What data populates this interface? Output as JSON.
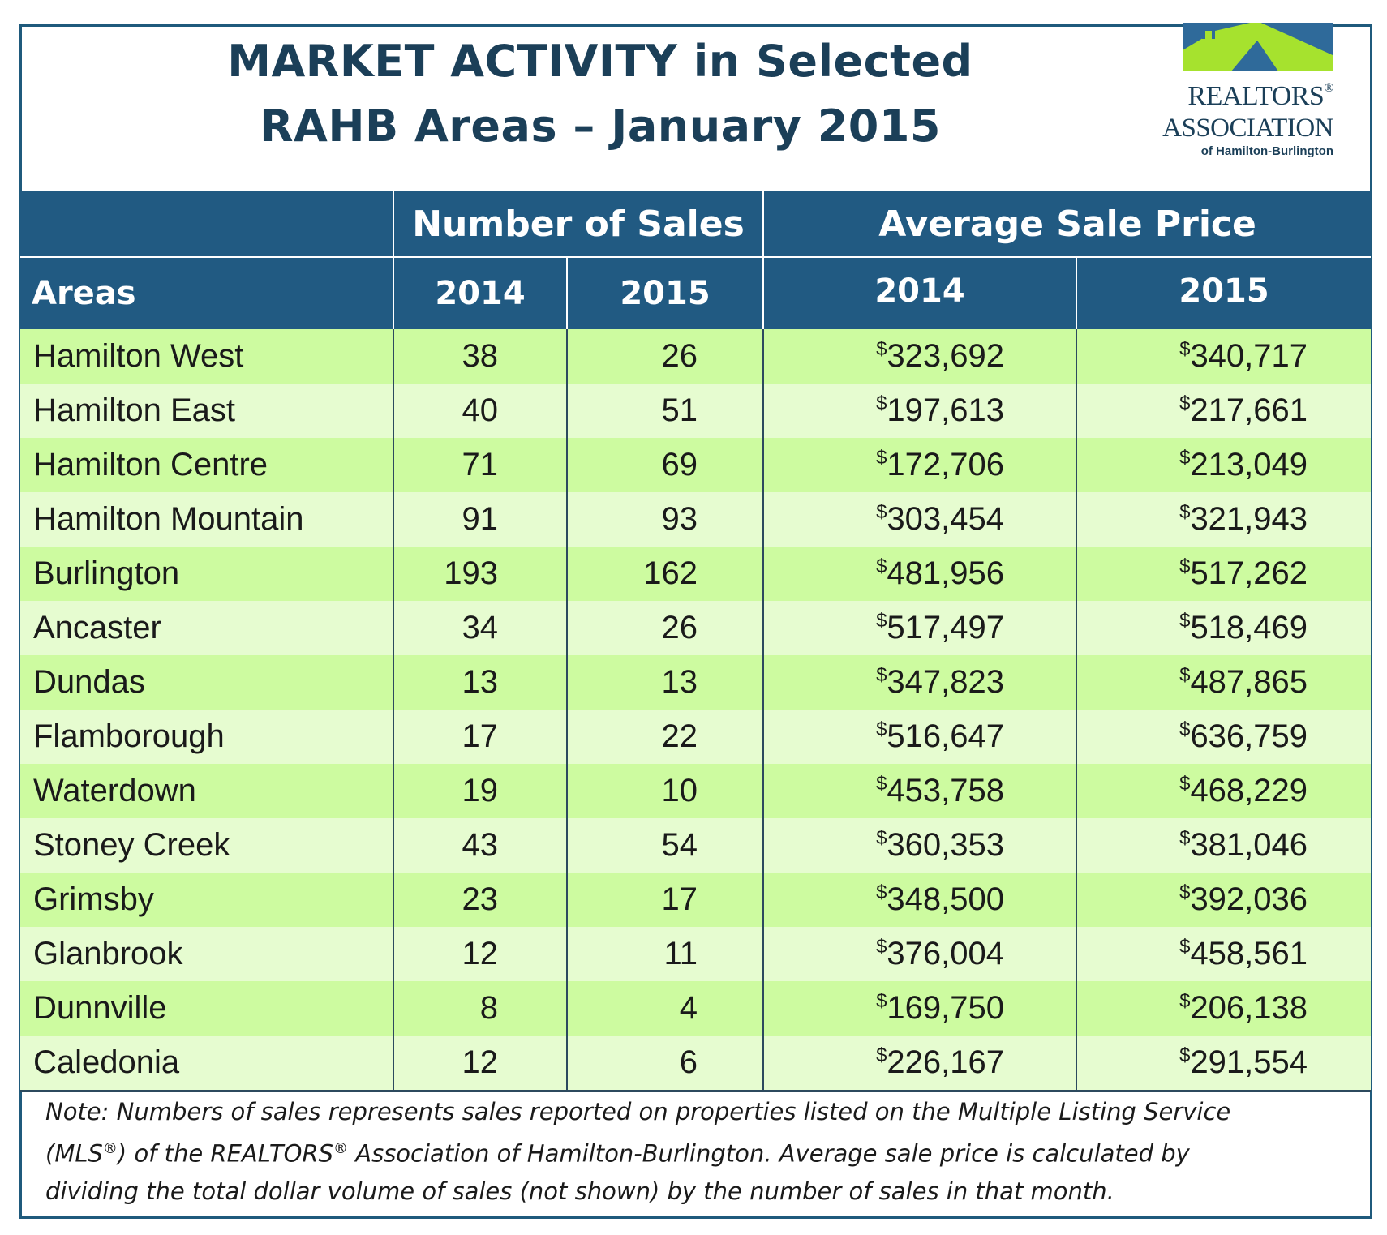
{
  "chart_data": {
    "type": "table",
    "title_line1": "MARKET ACTIVITY in Selected",
    "title_line2": "RAHB Areas – January 2015",
    "group_headers": [
      "Number of Sales",
      "Average Sale Price"
    ],
    "column_headers": [
      "Areas",
      "2014",
      "2015",
      "2014",
      "2015"
    ],
    "currency_symbol": "$",
    "rows": [
      {
        "area": "Hamilton West",
        "sales_2014": "38",
        "sales_2015": "26",
        "price_2014": "323,692",
        "price_2015": "340,717"
      },
      {
        "area": "Hamilton East",
        "sales_2014": "40",
        "sales_2015": "51",
        "price_2014": "197,613",
        "price_2015": "217,661"
      },
      {
        "area": "Hamilton Centre",
        "sales_2014": "71",
        "sales_2015": "69",
        "price_2014": "172,706",
        "price_2015": "213,049"
      },
      {
        "area": "Hamilton Mountain",
        "sales_2014": "91",
        "sales_2015": "93",
        "price_2014": "303,454",
        "price_2015": "321,943"
      },
      {
        "area": "Burlington",
        "sales_2014": "193",
        "sales_2015": "162",
        "price_2014": "481,956",
        "price_2015": "517,262"
      },
      {
        "area": "Ancaster",
        "sales_2014": "34",
        "sales_2015": "26",
        "price_2014": "517,497",
        "price_2015": "518,469"
      },
      {
        "area": "Dundas",
        "sales_2014": "13",
        "sales_2015": "13",
        "price_2014": "347,823",
        "price_2015": "487,865"
      },
      {
        "area": "Flamborough",
        "sales_2014": "17",
        "sales_2015": "22",
        "price_2014": "516,647",
        "price_2015": "636,759"
      },
      {
        "area": "Waterdown",
        "sales_2014": "19",
        "sales_2015": "10",
        "price_2014": "453,758",
        "price_2015": "468,229"
      },
      {
        "area": "Stoney Creek",
        "sales_2014": "43",
        "sales_2015": "54",
        "price_2014": "360,353",
        "price_2015": "381,046"
      },
      {
        "area": "Grimsby",
        "sales_2014": "23",
        "sales_2015": "17",
        "price_2014": "348,500",
        "price_2015": "392,036"
      },
      {
        "area": "Glanbrook",
        "sales_2014": "12",
        "sales_2015": "11",
        "price_2014": "376,004",
        "price_2015": "458,561"
      },
      {
        "area": "Dunnville",
        "sales_2014": "8",
        "sales_2015": "4",
        "price_2014": "169,750",
        "price_2015": "206,138"
      },
      {
        "area": "Caledonia",
        "sales_2014": "12",
        "sales_2015": "6",
        "price_2014": "226,167",
        "price_2015": "291,554"
      }
    ]
  },
  "logo": {
    "line1": "REALTORS",
    "line1_mark": "®",
    "line2": "ASSOCIATION",
    "line3": "of Hamilton-Burlington"
  },
  "note": {
    "line1": "Note:  Numbers of sales represents sales reported on properties listed on the Multiple Listing Service",
    "line2_a": "(MLS",
    "line2_mark1": "®",
    "line2_b": ") of the REALTORS",
    "line2_mark2": "®",
    "line2_c": " Association of Hamilton-Burlington.  Average sale price is calculated by",
    "line3": "dividing the total dollar volume of sales (not shown) by the number of sales in that month."
  },
  "colors": {
    "header_bg": "#215a82",
    "title_text": "#1b3f58",
    "row_odd": "#cdfba0",
    "row_even": "#e6fcd0",
    "logo_green": "#a6e22e",
    "logo_blue": "#2f6a9a"
  }
}
